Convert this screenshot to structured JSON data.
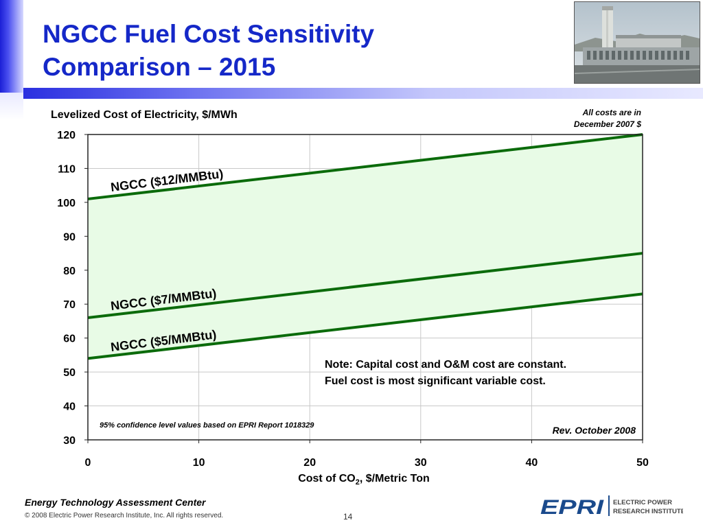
{
  "slide": {
    "title_line1": "NGCC Fuel Cost Sensitivity",
    "title_line2": "Comparison – 2015",
    "footer_center": "Energy Technology Assessment Center",
    "copyright": "© 2008 Electric Power Research Institute, Inc. All rights reserved.",
    "page_number": "14",
    "logo_text": "EPRI",
    "logo_subtitle_line1": "ELECTRIC POWER",
    "logo_subtitle_line2": "RESEARCH INSTITUTE"
  },
  "chart_data": {
    "type": "area",
    "ylabel": "Levelized Cost of Electricity, $/MWh",
    "xlabel_main": "Cost of CO",
    "xlabel_sub": "2",
    "xlabel_tail": ", $/Metric Ton",
    "xlim": [
      0,
      50
    ],
    "ylim": [
      30,
      120
    ],
    "x_ticks": [
      0,
      10,
      20,
      30,
      40,
      50
    ],
    "y_ticks": [
      30,
      40,
      50,
      60,
      70,
      80,
      90,
      100,
      110,
      120
    ],
    "grid": true,
    "band": {
      "between": [
        "NGCC ($5/MMBtu)",
        "NGCC ($12/MMBtu)"
      ],
      "color": "#e8fbe6"
    },
    "series": [
      {
        "name": "NGCC ($12/MMBtu)",
        "x": [
          0,
          50
        ],
        "y": [
          101,
          120
        ],
        "color": "#0b6b0b"
      },
      {
        "name": "NGCC ($7/MMBtu)",
        "x": [
          0,
          50
        ],
        "y": [
          66,
          85
        ],
        "color": "#0b6b0b"
      },
      {
        "name": "NGCC ($5/MMBtu)",
        "x": [
          0,
          50
        ],
        "y": [
          54,
          73
        ],
        "color": "#0b6b0b"
      }
    ],
    "annotations": {
      "cost_basis_line1": "All costs are in",
      "cost_basis_line2": "December 2007 $",
      "note_line1": "Note: Capital cost and O&M cost are constant.",
      "note_line2": "Fuel cost is most significant variable cost.",
      "confidence": "95% confidence level values based on EPRI Report 1018329",
      "revision": "Rev. October 2008"
    }
  }
}
